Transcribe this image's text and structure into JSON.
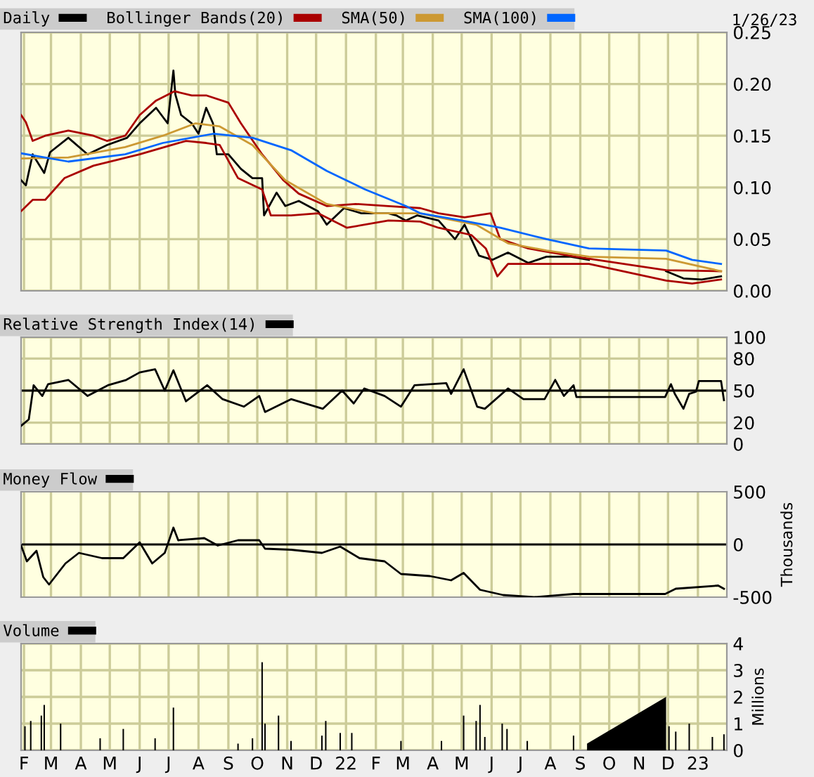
{
  "chart_data": [
    {
      "type": "line",
      "annotations": [
        "1/26/23"
      ],
      "legend": "top",
      "grid": true,
      "tick_labels": "y",
      "xlim": [
        "2021-01-29",
        "2023-01-31"
      ],
      "xticks": [
        {
          "value": "2021-02-01",
          "label": null
        },
        {
          "value": "2021-03-01",
          "label": null
        },
        {
          "value": "2021-04-01",
          "label": null
        },
        {
          "value": "2021-05-01",
          "label": null
        },
        {
          "value": "2021-06-01",
          "label": null
        },
        {
          "value": "2021-07-01",
          "label": null
        },
        {
          "value": "2021-08-01",
          "label": null
        },
        {
          "value": "2021-09-01",
          "label": null
        },
        {
          "value": "2021-10-01",
          "label": null
        },
        {
          "value": "2021-11-01",
          "label": null
        },
        {
          "value": "2021-12-01",
          "label": null
        },
        {
          "value": "2022-01-01",
          "label": null
        },
        {
          "value": "2022-02-01",
          "label": null
        },
        {
          "value": "2022-03-01",
          "label": null
        },
        {
          "value": "2022-04-01",
          "label": null
        },
        {
          "value": "2022-05-01",
          "label": null
        },
        {
          "value": "2022-06-01",
          "label": null
        },
        {
          "value": "2022-07-01",
          "label": null
        },
        {
          "value": "2022-08-01",
          "label": null
        },
        {
          "value": "2022-09-01",
          "label": null
        },
        {
          "value": "2022-10-01",
          "label": null
        },
        {
          "value": "2022-11-01",
          "label": null
        },
        {
          "value": "2022-12-01",
          "label": null
        },
        {
          "value": "2023-01-01",
          "label": null
        }
      ],
      "ylim": [
        0,
        0.25
      ],
      "yticks": [
        {
          "value": 0,
          "label": "0.00"
        },
        {
          "value": 0.05,
          "label": "0.05"
        },
        {
          "value": 0.1,
          "label": "0.10"
        },
        {
          "value": 0.15,
          "label": "0.15"
        },
        {
          "value": 0.2,
          "label": "0.20"
        },
        {
          "value": 0.25,
          "label": "0.25"
        }
      ],
      "series": [
        {
          "name": "Daily",
          "color": "#000000",
          "x": [
            "2021-01-29",
            "2021-02-03",
            "2021-02-10",
            "2021-02-22",
            "2021-02-28",
            "2021-03-19",
            "2021-04-08",
            "2021-04-28",
            "2021-05-19",
            "2021-06-01",
            "2021-06-18",
            "2021-06-30",
            "2021-07-06",
            "2021-07-08",
            "2021-07-14",
            "2021-07-25",
            "2021-08-01",
            "2021-08-09",
            "2021-08-16",
            "2021-08-20",
            "2021-09-01",
            "2021-09-14",
            "2021-09-26",
            "2021-10-06",
            "2021-10-08",
            "2021-10-21",
            "2021-10-30",
            "2021-11-13",
            "2021-12-03",
            "2021-12-12",
            "2021-12-30",
            "2022-01-17",
            "2022-02-14",
            "2022-02-22",
            "2022-03-04",
            "2022-03-16",
            "2022-04-07",
            "2022-04-24",
            "2022-05-04",
            "2022-05-19",
            "2022-06-02",
            "2022-06-18",
            "2022-07-09",
            "2022-07-28",
            "2022-08-22",
            "2022-09-10",
            "2022-10-16",
            "2022-11-29",
            "2022-12-17",
            "2023-01-05",
            "2023-01-25"
          ],
          "values": [
            0.107,
            0.102,
            0.132,
            0.114,
            0.134,
            0.148,
            0.132,
            0.141,
            0.148,
            0.162,
            0.177,
            0.162,
            0.213,
            0.19,
            0.17,
            0.162,
            0.152,
            0.177,
            0.162,
            0.132,
            0.132,
            0.118,
            0.109,
            0.109,
            0.073,
            0.095,
            0.082,
            0.087,
            0.077,
            0.064,
            0.08,
            0.075,
            0.075,
            0.073,
            0.068,
            0.073,
            0.068,
            0.05,
            0.064,
            0.034,
            0.03,
            0.037,
            0.027,
            0.033,
            0.033,
            0.03,
            null,
            0.019,
            0.012,
            0.011,
            0.014
          ]
        },
        {
          "name": "Bollinger Bands(20)",
          "color": "#aa0000",
          "x": [
            "2021-01-29",
            "2021-02-03",
            "2021-02-10",
            "2021-02-23",
            "2021-03-19",
            "2021-04-14",
            "2021-04-28",
            "2021-05-17",
            "2021-06-01",
            "2021-06-18",
            "2021-07-07",
            "2021-07-25",
            "2021-08-09",
            "2021-09-01",
            "2021-09-14",
            "2021-10-06",
            "2021-10-28",
            "2021-11-13",
            "2021-12-12",
            "2022-01-11",
            "2022-02-14",
            "2022-03-19",
            "2022-04-07",
            "2022-05-04",
            "2022-05-31",
            "2022-06-10",
            "2022-07-09",
            "2022-08-27",
            "2022-11-29",
            "2023-01-25"
          ],
          "values": [
            0.17,
            0.163,
            0.145,
            0.15,
            0.155,
            0.15,
            0.145,
            0.15,
            0.17,
            0.184,
            0.193,
            0.189,
            0.189,
            0.182,
            0.162,
            0.132,
            0.107,
            0.094,
            0.082,
            0.084,
            0.082,
            0.08,
            0.075,
            0.071,
            0.075,
            0.05,
            0.041,
            0.033,
            0.02,
            0.019
          ]
        },
        {
          "color": "#aa0000",
          "x": [
            "2021-01-29",
            "2021-02-10",
            "2021-02-23",
            "2021-03-15",
            "2021-04-14",
            "2021-06-01",
            "2021-07-19",
            "2021-08-09",
            "2021-08-23",
            "2021-09-11",
            "2021-10-06",
            "2021-10-15",
            "2021-11-05",
            "2021-12-03",
            "2022-01-02",
            "2022-02-14",
            "2022-03-19",
            "2022-04-07",
            "2022-05-11",
            "2022-05-26",
            "2022-06-07",
            "2022-06-18",
            "2022-07-28",
            "2022-09-10",
            "2022-11-29",
            "2022-12-26",
            "2023-01-25"
          ],
          "values": [
            0.077,
            0.088,
            0.088,
            0.109,
            0.121,
            0.132,
            0.145,
            0.143,
            0.141,
            0.109,
            0.098,
            0.073,
            0.073,
            0.075,
            0.061,
            0.068,
            0.067,
            0.061,
            0.054,
            0.041,
            0.014,
            0.026,
            0.026,
            0.026,
            0.01,
            0.007,
            0.011
          ]
        },
        {
          "name": "SMA(50)",
          "color": "#cc9933",
          "x": [
            "2021-01-29",
            "2021-03-19",
            "2021-05-17",
            "2021-06-25",
            "2021-07-29",
            "2021-08-23",
            "2021-09-26",
            "2021-10-30",
            "2021-12-12",
            "2022-01-31",
            "2022-03-19",
            "2022-04-07",
            "2022-05-16",
            "2022-06-18",
            "2022-07-28",
            "2022-09-10",
            "2022-11-29",
            "2023-01-25"
          ],
          "values": [
            0.128,
            0.129,
            0.139,
            0.15,
            0.162,
            0.159,
            0.141,
            0.107,
            0.084,
            0.075,
            0.075,
            0.071,
            0.064,
            0.046,
            0.039,
            0.033,
            0.031,
            0.019
          ]
        },
        {
          "name": "SMA(100)",
          "color": "#0066ff",
          "x": [
            "2021-01-29",
            "2021-03-19",
            "2021-05-17",
            "2021-06-25",
            "2021-08-17",
            "2021-09-26",
            "2021-11-05",
            "2021-12-12",
            "2022-01-21",
            "2022-03-04",
            "2022-03-19",
            "2022-05-01",
            "2022-06-10",
            "2022-07-28",
            "2022-09-10",
            "2022-11-29",
            "2022-12-26",
            "2023-01-25"
          ],
          "values": [
            0.133,
            0.125,
            0.132,
            0.143,
            0.152,
            0.148,
            0.136,
            0.116,
            0.098,
            0.082,
            0.075,
            0.068,
            0.061,
            0.05,
            0.041,
            0.039,
            0.03,
            0.026
          ]
        }
      ]
    },
    {
      "type": "line",
      "legend": "top",
      "grid": true,
      "tick_labels": "y",
      "xlim": [
        "2021-01-29",
        "2023-01-31"
      ],
      "xticks": [
        {
          "value": "2021-02-01",
          "label": null
        },
        {
          "value": "2021-03-01",
          "label": null
        },
        {
          "value": "2021-04-01",
          "label": null
        },
        {
          "value": "2021-05-01",
          "label": null
        },
        {
          "value": "2021-06-01",
          "label": null
        },
        {
          "value": "2021-07-01",
          "label": null
        },
        {
          "value": "2021-08-01",
          "label": null
        },
        {
          "value": "2021-09-01",
          "label": null
        },
        {
          "value": "2021-10-01",
          "label": null
        },
        {
          "value": "2021-11-01",
          "label": null
        },
        {
          "value": "2021-12-01",
          "label": null
        },
        {
          "value": "2022-01-01",
          "label": null
        },
        {
          "value": "2022-02-01",
          "label": null
        },
        {
          "value": "2022-03-01",
          "label": null
        },
        {
          "value": "2022-04-01",
          "label": null
        },
        {
          "value": "2022-05-01",
          "label": null
        },
        {
          "value": "2022-06-01",
          "label": null
        },
        {
          "value": "2022-07-01",
          "label": null
        },
        {
          "value": "2022-08-01",
          "label": null
        },
        {
          "value": "2022-09-01",
          "label": null
        },
        {
          "value": "2022-10-01",
          "label": null
        },
        {
          "value": "2022-11-01",
          "label": null
        },
        {
          "value": "2022-12-01",
          "label": null
        },
        {
          "value": "2023-01-01",
          "label": null
        }
      ],
      "ylim": [
        0,
        100
      ],
      "yticks": [
        0,
        20,
        50,
        80,
        100
      ],
      "ref_lines": [
        {
          "axis": "y",
          "value": 50,
          "color": "#000000"
        }
      ],
      "series": [
        {
          "name": "Relative Strength Index(14)",
          "color": "#000000",
          "x": [
            "2021-01-29",
            "2021-02-06",
            "2021-02-11",
            "2021-02-20",
            "2021-02-26",
            "2021-03-19",
            "2021-04-08",
            "2021-04-29",
            "2021-05-18",
            "2021-06-01",
            "2021-06-17",
            "2021-06-27",
            "2021-07-06",
            "2021-07-19",
            "2021-08-10",
            "2021-08-26",
            "2021-09-17",
            "2021-10-03",
            "2021-10-09",
            "2021-11-05",
            "2021-12-08",
            "2021-12-28",
            "2022-01-09",
            "2022-01-20",
            "2022-02-10",
            "2022-02-27",
            "2022-03-13",
            "2022-04-15",
            "2022-04-20",
            "2022-05-03",
            "2022-05-17",
            "2022-05-25",
            "2022-06-18",
            "2022-07-04",
            "2022-07-26",
            "2022-08-06",
            "2022-08-15",
            "2022-08-25",
            "2022-08-28",
            "2022-11-28",
            "2022-12-04",
            "2022-12-08",
            "2022-12-17",
            "2022-12-23",
            "2022-12-30",
            "2023-01-02",
            "2023-01-25",
            "2023-01-28"
          ],
          "values": [
            17,
            23,
            55,
            45,
            56,
            60,
            45,
            55,
            60,
            67,
            70,
            50,
            69,
            40,
            55,
            42,
            35,
            45,
            30,
            42,
            33,
            50,
            38,
            52,
            45,
            35,
            55,
            57,
            47,
            70,
            35,
            33,
            52,
            42,
            42,
            60,
            45,
            55,
            44,
            44,
            56,
            47,
            33,
            47,
            49,
            59,
            59,
            41
          ]
        }
      ]
    },
    {
      "type": "line",
      "legend": "top",
      "grid": "x",
      "tick_labels": "y",
      "ylabel": "Thousands",
      "xlim": [
        "2021-01-29",
        "2023-01-31"
      ],
      "xticks": [
        {
          "value": "2021-02-01",
          "label": null
        },
        {
          "value": "2021-03-01",
          "label": null
        },
        {
          "value": "2021-04-01",
          "label": null
        },
        {
          "value": "2021-05-01",
          "label": null
        },
        {
          "value": "2021-06-01",
          "label": null
        },
        {
          "value": "2021-07-01",
          "label": null
        },
        {
          "value": "2021-08-01",
          "label": null
        },
        {
          "value": "2021-09-01",
          "label": null
        },
        {
          "value": "2021-10-01",
          "label": null
        },
        {
          "value": "2021-11-01",
          "label": null
        },
        {
          "value": "2021-12-01",
          "label": null
        },
        {
          "value": "2022-01-01",
          "label": null
        },
        {
          "value": "2022-02-01",
          "label": null
        },
        {
          "value": "2022-03-01",
          "label": null
        },
        {
          "value": "2022-04-01",
          "label": null
        },
        {
          "value": "2022-05-01",
          "label": null
        },
        {
          "value": "2022-06-01",
          "label": null
        },
        {
          "value": "2022-07-01",
          "label": null
        },
        {
          "value": "2022-08-01",
          "label": null
        },
        {
          "value": "2022-09-01",
          "label": null
        },
        {
          "value": "2022-10-01",
          "label": null
        },
        {
          "value": "2022-11-01",
          "label": null
        },
        {
          "value": "2022-12-01",
          "label": null
        },
        {
          "value": "2023-01-01",
          "label": null
        }
      ],
      "ylim": [
        -500,
        500
      ],
      "yticks": [
        -500,
        0,
        500
      ],
      "ref_lines": [
        {
          "axis": "y",
          "value": 0,
          "color": "#000000"
        }
      ],
      "series": [
        {
          "name": "Money Flow",
          "color": "#000000",
          "x": [
            "2021-01-29",
            "2021-02-04",
            "2021-02-14",
            "2021-02-21",
            "2021-02-27",
            "2021-03-16",
            "2021-03-30",
            "2021-04-23",
            "2021-05-15",
            "2021-06-01",
            "2021-06-14",
            "2021-06-27",
            "2021-07-06",
            "2021-07-11",
            "2021-08-07",
            "2021-08-21",
            "2021-09-11",
            "2021-10-03",
            "2021-10-09",
            "2021-11-05",
            "2021-12-07",
            "2021-12-26",
            "2022-01-15",
            "2022-02-10",
            "2022-02-27",
            "2022-03-29",
            "2022-04-20",
            "2022-05-03",
            "2022-05-20",
            "2022-06-13",
            "2022-07-15",
            "2022-08-25",
            "2022-11-28",
            "2022-12-09",
            "2023-01-22",
            "2023-01-28"
          ],
          "values": [
            -10,
            -160,
            -60,
            -310,
            -380,
            -180,
            -80,
            -130,
            -130,
            20,
            -180,
            -80,
            160,
            40,
            60,
            -10,
            40,
            40,
            -40,
            -50,
            -80,
            -20,
            -130,
            -160,
            -280,
            -300,
            -340,
            -270,
            -430,
            -480,
            -500,
            -470,
            -470,
            -420,
            -390,
            -420
          ]
        }
      ]
    },
    {
      "type": "bar",
      "legend": "top",
      "grid": true,
      "ylabel": "Millions",
      "xlim": [
        "2021-01-29",
        "2023-01-31"
      ],
      "xticks": [
        {
          "value": "2021-02-01",
          "label": "F"
        },
        {
          "value": "2021-03-01",
          "label": "M"
        },
        {
          "value": "2021-04-01",
          "label": "A"
        },
        {
          "value": "2021-05-01",
          "label": "M"
        },
        {
          "value": "2021-06-01",
          "label": "J"
        },
        {
          "value": "2021-07-01",
          "label": "J"
        },
        {
          "value": "2021-08-01",
          "label": "A"
        },
        {
          "value": "2021-09-01",
          "label": "S"
        },
        {
          "value": "2021-10-01",
          "label": "O"
        },
        {
          "value": "2021-11-01",
          "label": "N"
        },
        {
          "value": "2021-12-01",
          "label": "D"
        },
        {
          "value": "2022-01-01",
          "label": "22"
        },
        {
          "value": "2022-02-01",
          "label": "F"
        },
        {
          "value": "2022-03-01",
          "label": "M"
        },
        {
          "value": "2022-04-01",
          "label": "A"
        },
        {
          "value": "2022-05-01",
          "label": "M"
        },
        {
          "value": "2022-06-01",
          "label": "J"
        },
        {
          "value": "2022-07-01",
          "label": "J"
        },
        {
          "value": "2022-08-01",
          "label": "A"
        },
        {
          "value": "2022-09-01",
          "label": "S"
        },
        {
          "value": "2022-10-01",
          "label": "O"
        },
        {
          "value": "2022-11-01",
          "label": "N"
        },
        {
          "value": "2022-12-01",
          "label": "D"
        },
        {
          "value": "2023-01-01",
          "label": "23"
        }
      ],
      "ylim": [
        0,
        4
      ],
      "yticks": [
        0,
        1,
        2,
        3,
        4
      ],
      "series": [
        {
          "name": "Volume",
          "color": "#000000",
          "x": [
            "2021-02-02",
            "2021-02-08",
            "2021-02-19",
            "2021-02-22",
            "2021-03-11",
            "2021-04-21",
            "2021-05-15",
            "2021-06-17",
            "2021-07-06",
            "2021-09-11",
            "2021-09-26",
            "2021-10-06",
            "2021-10-09",
            "2021-10-23",
            "2021-11-05",
            "2021-12-07",
            "2021-12-11",
            "2021-12-26",
            "2022-01-07",
            "2022-02-27",
            "2022-04-10",
            "2022-05-03",
            "2022-05-16",
            "2022-05-20",
            "2022-05-25",
            "2022-06-12",
            "2022-06-17",
            "2022-07-08",
            "2022-08-25",
            "2022-12-02",
            "2022-12-09",
            "2022-12-23",
            "2023-01-16",
            "2023-01-28"
          ],
          "values": [
            0.9,
            1.1,
            1.3,
            1.7,
            1.0,
            0.45,
            0.8,
            0.45,
            1.6,
            0.25,
            0.45,
            3.3,
            1.0,
            1.3,
            0.35,
            0.55,
            1.1,
            0.65,
            0.65,
            0.35,
            0.35,
            1.3,
            1.1,
            1.7,
            0.5,
            1.0,
            0.8,
            0.35,
            0.55,
            0.9,
            0.7,
            1.0,
            0.5,
            0.6
          ]
        },
        {
          "type": "area",
          "color": "#000000",
          "x": [
            "2022-09-08",
            "2022-11-29"
          ],
          "values": [
            0.25,
            2.0
          ]
        }
      ]
    }
  ]
}
